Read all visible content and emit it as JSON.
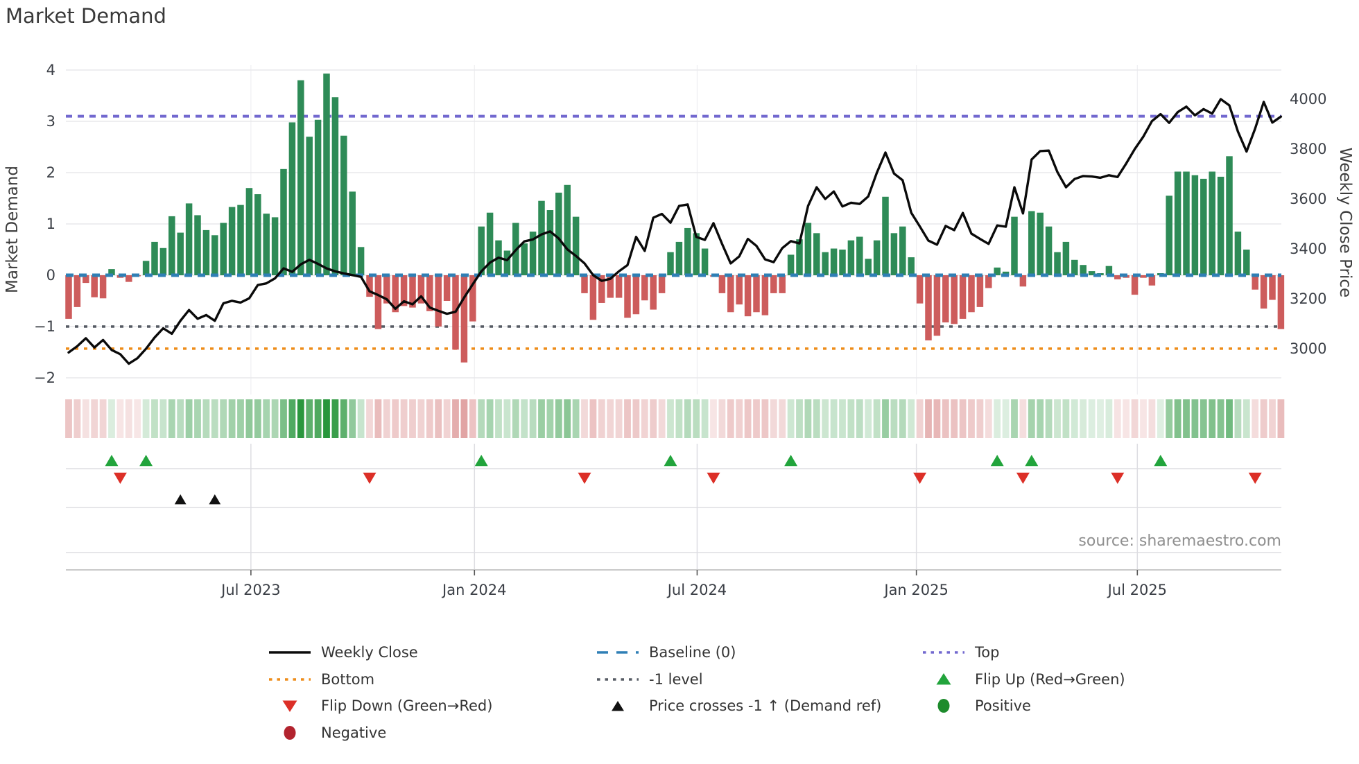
{
  "title": "Market Demand",
  "source": "source: sharemaestro.com",
  "axes": {
    "left_label": "Market Demand",
    "right_label": "Weekly Close Price",
    "left_ticks": [
      "4",
      "3",
      "2",
      "1",
      "0",
      "−1",
      "−2"
    ],
    "left_tick_values": [
      4,
      3,
      2,
      1,
      0,
      -1,
      -2
    ],
    "right_ticks": [
      "4000",
      "3800",
      "3600",
      "3400",
      "3200",
      "3000"
    ],
    "right_tick_values": [
      4000,
      3800,
      3600,
      3400,
      3200,
      3000
    ],
    "x_ticks": [
      "Jul 2023",
      "Jan 2024",
      "Jul 2024",
      "Jan 2025",
      "Jul 2025"
    ],
    "x_tick_weeks": [
      21.2,
      47.2,
      73.1,
      98.6,
      124.3
    ]
  },
  "chart_data": {
    "type": "combo-bar-line",
    "series": [
      {
        "name": "Market Demand",
        "type": "bar",
        "axis": "left"
      },
      {
        "name": "Weekly Close",
        "type": "line",
        "axis": "right"
      }
    ],
    "weeks_count": 142,
    "demand": [
      -0.85,
      -0.62,
      -0.15,
      -0.43,
      -0.45,
      0.12,
      -0.05,
      -0.13,
      -0.02,
      0.28,
      0.65,
      0.53,
      1.15,
      0.83,
      1.4,
      1.17,
      0.88,
      0.78,
      1.02,
      1.33,
      1.37,
      1.7,
      1.58,
      1.2,
      1.13,
      2.07,
      2.98,
      3.8,
      2.7,
      3.03,
      3.93,
      3.47,
      2.72,
      1.63,
      0.55,
      -0.42,
      -1.05,
      -0.55,
      -0.72,
      -0.6,
      -0.63,
      -0.55,
      -0.7,
      -1.0,
      -0.5,
      -1.45,
      -1.7,
      -0.9,
      0.95,
      1.22,
      0.68,
      0.48,
      1.02,
      0.62,
      0.85,
      1.45,
      1.27,
      1.61,
      1.76,
      1.14,
      -0.35,
      -0.87,
      -0.54,
      -0.44,
      -0.44,
      -0.83,
      -0.76,
      -0.49,
      -0.67,
      -0.35,
      0.45,
      0.65,
      0.92,
      0.82,
      0.52,
      -0.03,
      -0.35,
      -0.72,
      -0.57,
      -0.8,
      -0.72,
      -0.78,
      -0.35,
      -0.35,
      0.4,
      0.7,
      1.02,
      0.82,
      0.45,
      0.52,
      0.5,
      0.68,
      0.75,
      0.32,
      0.68,
      1.53,
      0.82,
      0.95,
      0.35,
      -0.55,
      -1.27,
      -1.18,
      -0.92,
      -0.95,
      -0.85,
      -0.72,
      -0.62,
      -0.25,
      0.15,
      0.07,
      1.14,
      -0.22,
      1.25,
      1.22,
      0.95,
      0.45,
      0.65,
      0.3,
      0.2,
      0.08,
      0.04,
      0.18,
      -0.08,
      -0.05,
      -0.38,
      -0.05,
      -0.2,
      0.04,
      1.55,
      2.02,
      2.02,
      1.95,
      1.88,
      2.02,
      1.92,
      2.32,
      0.85,
      0.5,
      -0.28,
      -0.65,
      -0.48,
      -1.05
    ],
    "price": [
      2985,
      3010,
      3042,
      3005,
      3035,
      2995,
      2978,
      2940,
      2962,
      3000,
      3045,
      3082,
      3060,
      3112,
      3155,
      3120,
      3135,
      3112,
      3182,
      3192,
      3185,
      3202,
      3255,
      3262,
      3282,
      3322,
      3308,
      3338,
      3356,
      3340,
      3322,
      3310,
      3302,
      3295,
      3288,
      3230,
      3215,
      3198,
      3160,
      3190,
      3178,
      3210,
      3165,
      3152,
      3140,
      3148,
      3205,
      3258,
      3310,
      3345,
      3365,
      3355,
      3395,
      3430,
      3438,
      3458,
      3470,
      3442,
      3398,
      3372,
      3342,
      3295,
      3272,
      3280,
      3310,
      3335,
      3448,
      3392,
      3525,
      3540,
      3505,
      3572,
      3578,
      3448,
      3436,
      3503,
      3420,
      3342,
      3370,
      3440,
      3412,
      3358,
      3347,
      3403,
      3431,
      3422,
      3572,
      3647,
      3600,
      3630,
      3570,
      3585,
      3580,
      3610,
      3705,
      3786,
      3702,
      3675,
      3545,
      3490,
      3433,
      3417,
      3492,
      3475,
      3544,
      3461,
      3440,
      3420,
      3494,
      3489,
      3647,
      3542,
      3758,
      3792,
      3794,
      3708,
      3647,
      3680,
      3692,
      3690,
      3685,
      3695,
      3688,
      3742,
      3800,
      3850,
      3912,
      3940,
      3905,
      3948,
      3970,
      3935,
      3960,
      3942,
      4000,
      3975,
      3870,
      3790,
      3882,
      3989,
      3906,
      3930
    ],
    "reference_levels": {
      "baseline": 0,
      "top": 3.1,
      "minus1": -1,
      "bottom": -1.43
    },
    "markers": {
      "flip_up_weeks": [
        5,
        9,
        48,
        70,
        84,
        108,
        112,
        127
      ],
      "flip_down_weeks": [
        6,
        35,
        60,
        75,
        99,
        111,
        122,
        138
      ],
      "price_cross_weeks": [
        13,
        17
      ]
    },
    "ylim_left": [
      -2.3,
      4.1
    ],
    "ylim_right": [
      2900,
      4080
    ],
    "grid": true,
    "legend_position": "bottom"
  },
  "colors": {
    "positive_bar": "#2e8b57",
    "negative_bar": "#cd5c5c",
    "price_line": "#0a0a0a",
    "baseline": "#2f7fb5",
    "top": "#7268cf",
    "bottom": "#ee8c19",
    "minus1": "#565b64",
    "flip_up": "#22a43c",
    "flip_down": "#dc2f27",
    "price_cross": "#111111",
    "positive_dot": "#1d8b2c",
    "negative_dot": "#b2232e",
    "grid": "#e8e8ec",
    "grid_lower": "#dddde2",
    "spine": "#c9c9c9",
    "tick_text": "#3b3f46"
  },
  "legend": {
    "columns": [
      [
        {
          "label": "Weekly Close",
          "marker": "line_solid_black"
        },
        {
          "label": "Bottom",
          "marker": "dot_orange"
        },
        {
          "label": "Flip Down (Green→Red)",
          "marker": "tri_down_red"
        },
        {
          "label": "Negative",
          "marker": "circle_darkred"
        }
      ],
      [
        {
          "label": "Baseline (0)",
          "marker": "dash_blue"
        },
        {
          "label": "-1 level",
          "marker": "dot_gray"
        },
        {
          "label": "Price crosses -1 ↑ (Demand ref)",
          "marker": "tri_up_black"
        }
      ],
      [
        {
          "label": "Top",
          "marker": "dot_purple"
        },
        {
          "label": "Flip Up (Red→Green)",
          "marker": "tri_up_green"
        },
        {
          "label": "Positive",
          "marker": "circle_green"
        }
      ]
    ],
    "column_lefts": [
      385,
      858,
      1328
    ]
  }
}
